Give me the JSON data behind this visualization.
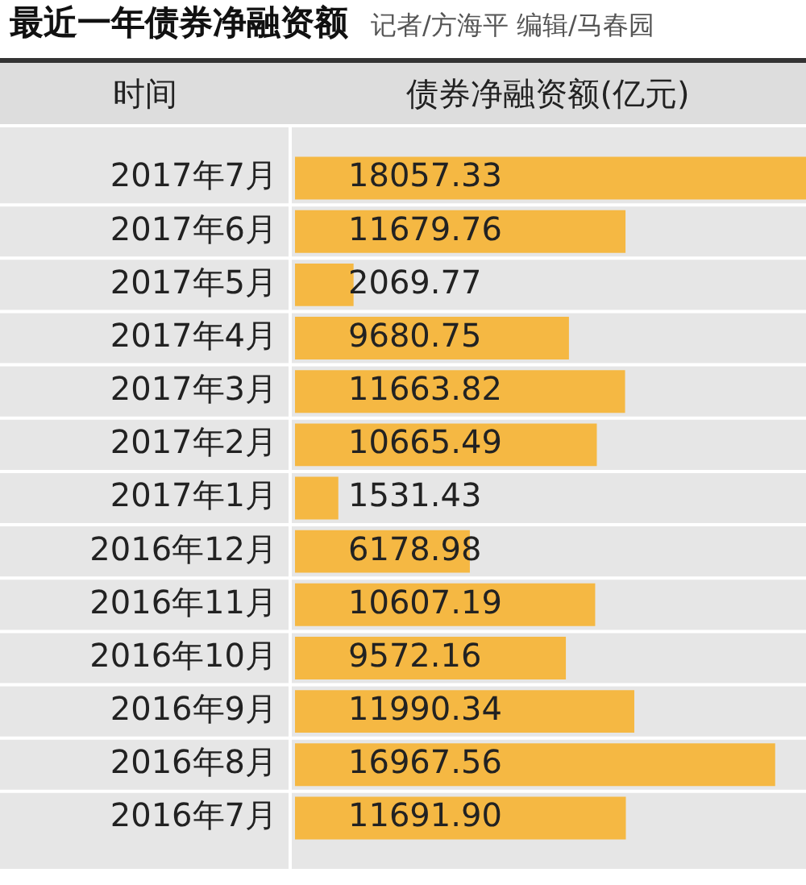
{
  "chart_data": {
    "type": "bar",
    "orientation": "horizontal",
    "title": "最近一年债券净融资额",
    "subtitle": "记者/方海平 编辑/马春园",
    "ylabel": "时间",
    "xlabel": "债券净融资额(亿元)",
    "categories": [
      "2017年7月",
      "2017年6月",
      "2017年5月",
      "2017年4月",
      "2017年3月",
      "2017年2月",
      "2017年1月",
      "2016年12月",
      "2016年11月",
      "2016年10月",
      "2016年9月",
      "2016年8月",
      "2016年7月"
    ],
    "values": [
      18057.33,
      11679.76,
      2069.77,
      9680.75,
      11663.82,
      10665.49,
      1531.43,
      6178.98,
      10607.19,
      9572.16,
      11990.34,
      16967.56,
      11691.9
    ],
    "value_labels": [
      "18057.33",
      "11679.76",
      "2069.77",
      "9680.75",
      "11663.82",
      "10665.49",
      "1531.43",
      "6178.98",
      "10607.19",
      "9572.16",
      "11990.34",
      "16967.56",
      "11691.90"
    ],
    "color": "#f5b843",
    "grid": false,
    "legend": false
  }
}
